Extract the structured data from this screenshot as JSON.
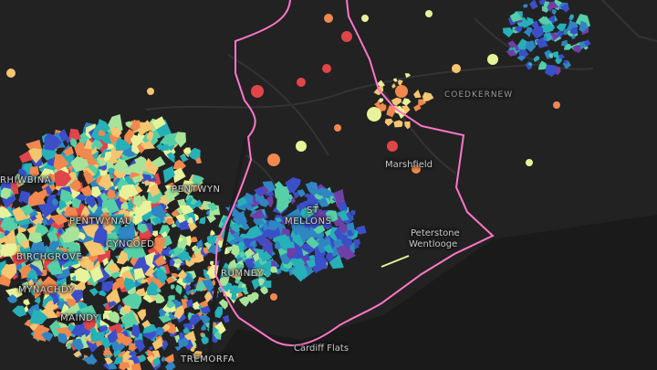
{
  "map": {
    "background": "#1f1f1f",
    "boundary_color": "#ff77c8",
    "palette": [
      "#3b4fc8",
      "#2f86c2",
      "#27b0b8",
      "#57cfa6",
      "#a9e39a",
      "#e8f29a",
      "#f6c56f",
      "#f1884e",
      "#e0454a",
      "#6d3fa7"
    ],
    "labels": {
      "coedkernew": "COEDKERNEW",
      "marshfield": "Marshfield",
      "pentwyn": "PENTWYN",
      "st": "ST",
      "mellons": "MELLONS",
      "peterstone": "Peterstone",
      "wentlooge": "Wentlooge",
      "rhiwbina": "RHIWBINA",
      "pentwynau": "PENTWYNAU",
      "cyncoed": "CYNCOED",
      "birchgrove": "BIRCHGROVE",
      "rumney": "RUMNEY",
      "mynachdy": "MYNACHDY",
      "maindy": "MAINDY",
      "tremorfa": "TREMORFA",
      "cardiff_flats": "Cardiff Flats"
    }
  }
}
